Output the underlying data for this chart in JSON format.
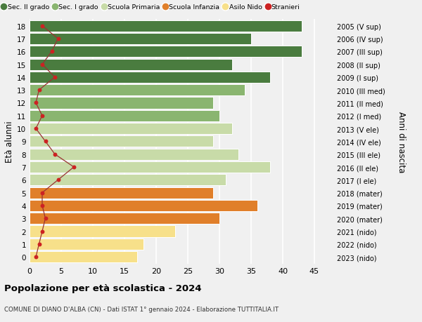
{
  "ages": [
    0,
    1,
    2,
    3,
    4,
    5,
    6,
    7,
    8,
    9,
    10,
    11,
    12,
    13,
    14,
    15,
    16,
    17,
    18
  ],
  "values": [
    17,
    18,
    23,
    30,
    36,
    29,
    31,
    38,
    33,
    29,
    32,
    30,
    29,
    34,
    38,
    32,
    43,
    35,
    43
  ],
  "stranieri": [
    1.0,
    1.5,
    2.0,
    2.5,
    2.0,
    2.0,
    4.5,
    7.0,
    4.0,
    2.5,
    1.0,
    2.0,
    1.0,
    1.5,
    4.0,
    2.0,
    3.5,
    4.5,
    2.0
  ],
  "bar_colors": [
    "#f7e08a",
    "#f7e08a",
    "#f7e08a",
    "#e07f2a",
    "#e07f2a",
    "#e07f2a",
    "#c8dba8",
    "#c8dba8",
    "#c8dba8",
    "#c8dba8",
    "#c8dba8",
    "#8ab570",
    "#8ab570",
    "#8ab570",
    "#4a7c3f",
    "#4a7c3f",
    "#4a7c3f",
    "#4a7c3f",
    "#4a7c3f"
  ],
  "right_labels": [
    "2023 (nido)",
    "2022 (nido)",
    "2021 (nido)",
    "2020 (mater)",
    "2019 (mater)",
    "2018 (mater)",
    "2017 (I ele)",
    "2016 (II ele)",
    "2015 (III ele)",
    "2014 (IV ele)",
    "2013 (V ele)",
    "2012 (I med)",
    "2011 (II med)",
    "2010 (III med)",
    "2009 (I sup)",
    "2008 (II sup)",
    "2007 (III sup)",
    "2006 (IV sup)",
    "2005 (V sup)"
  ],
  "ylabel_left": "Età alunni",
  "ylabel_right": "Anni di nascita",
  "title": "Popolazione per età scolastica - 2024",
  "subtitle": "COMUNE DI DIANO D'ALBA (CN) - Dati ISTAT 1° gennaio 2024 - Elaborazione TUTTITALIA.IT",
  "xlim": [
    0,
    48
  ],
  "xticks": [
    0,
    5,
    10,
    15,
    20,
    25,
    30,
    35,
    40,
    45
  ],
  "legend_labels": [
    "Sec. II grado",
    "Sec. I grado",
    "Scuola Primaria",
    "Scuola Infanzia",
    "Asilo Nido",
    "Stranieri"
  ],
  "legend_colors": [
    "#4a7c3f",
    "#8ab570",
    "#c8dba8",
    "#e07f2a",
    "#f7e08a",
    "#cc2222"
  ],
  "background_color": "#f0f0f0",
  "grid_color": "#ffffff",
  "stranieri_color": "#cc2222",
  "stranieri_line_color": "#993333",
  "bar_edge_color": "#ffffff",
  "bar_height": 0.88
}
